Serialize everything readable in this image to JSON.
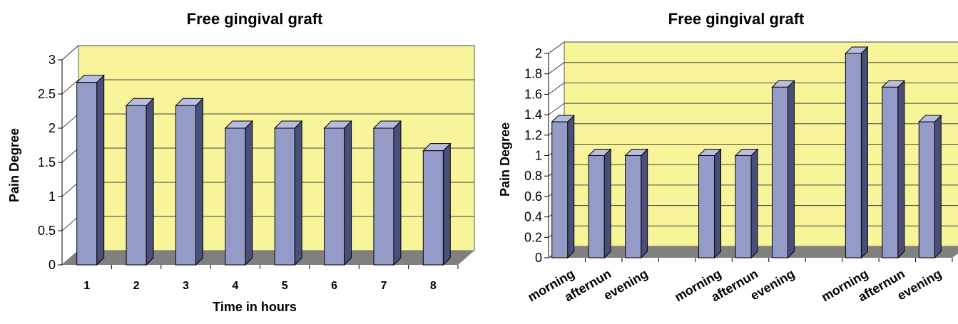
{
  "chart_data": [
    {
      "type": "bar",
      "title": "Free gingival graft",
      "xlabel": "Time in hours",
      "ylabel": "Pain Degree",
      "ylim": [
        0,
        3
      ],
      "yticks": [
        "0",
        "0.5",
        "1",
        "1.5",
        "2",
        "2.5",
        "3"
      ],
      "categories": [
        "1",
        "2",
        "3",
        "4",
        "5",
        "6",
        "7",
        "8"
      ],
      "values": [
        2.67,
        2.33,
        2.33,
        2.0,
        2.0,
        2.0,
        2.0,
        1.67
      ],
      "grid": true,
      "colors": {
        "wall": "#f7f49a",
        "floor": "#808080",
        "bar_front": "#949bc6",
        "bar_top": "#b8bde0",
        "bar_side": "#4a4f7a"
      }
    },
    {
      "type": "bar",
      "title": "Free gingival graft",
      "xlabel": "",
      "ylabel": "Pain Degree",
      "ylim": [
        0,
        2
      ],
      "yticks": [
        "0",
        "0.2",
        "0.4",
        "0.6",
        "0.8",
        "1",
        "1.2",
        "1.4",
        "1.6",
        "1.8",
        "2"
      ],
      "categories": [
        "morning",
        "afternun",
        "evening",
        "",
        "morning",
        "afternun",
        "evening",
        "",
        "morning",
        "afternun",
        "evening"
      ],
      "values": [
        1.33,
        1.0,
        1.0,
        null,
        1.0,
        1.0,
        1.67,
        null,
        2.0,
        1.67,
        1.33
      ],
      "grid": true,
      "colors": {
        "wall": "#f7f49a",
        "floor": "#808080",
        "bar_front": "#949bc6",
        "bar_top": "#b8bde0",
        "bar_side": "#4a4f7a"
      }
    }
  ]
}
